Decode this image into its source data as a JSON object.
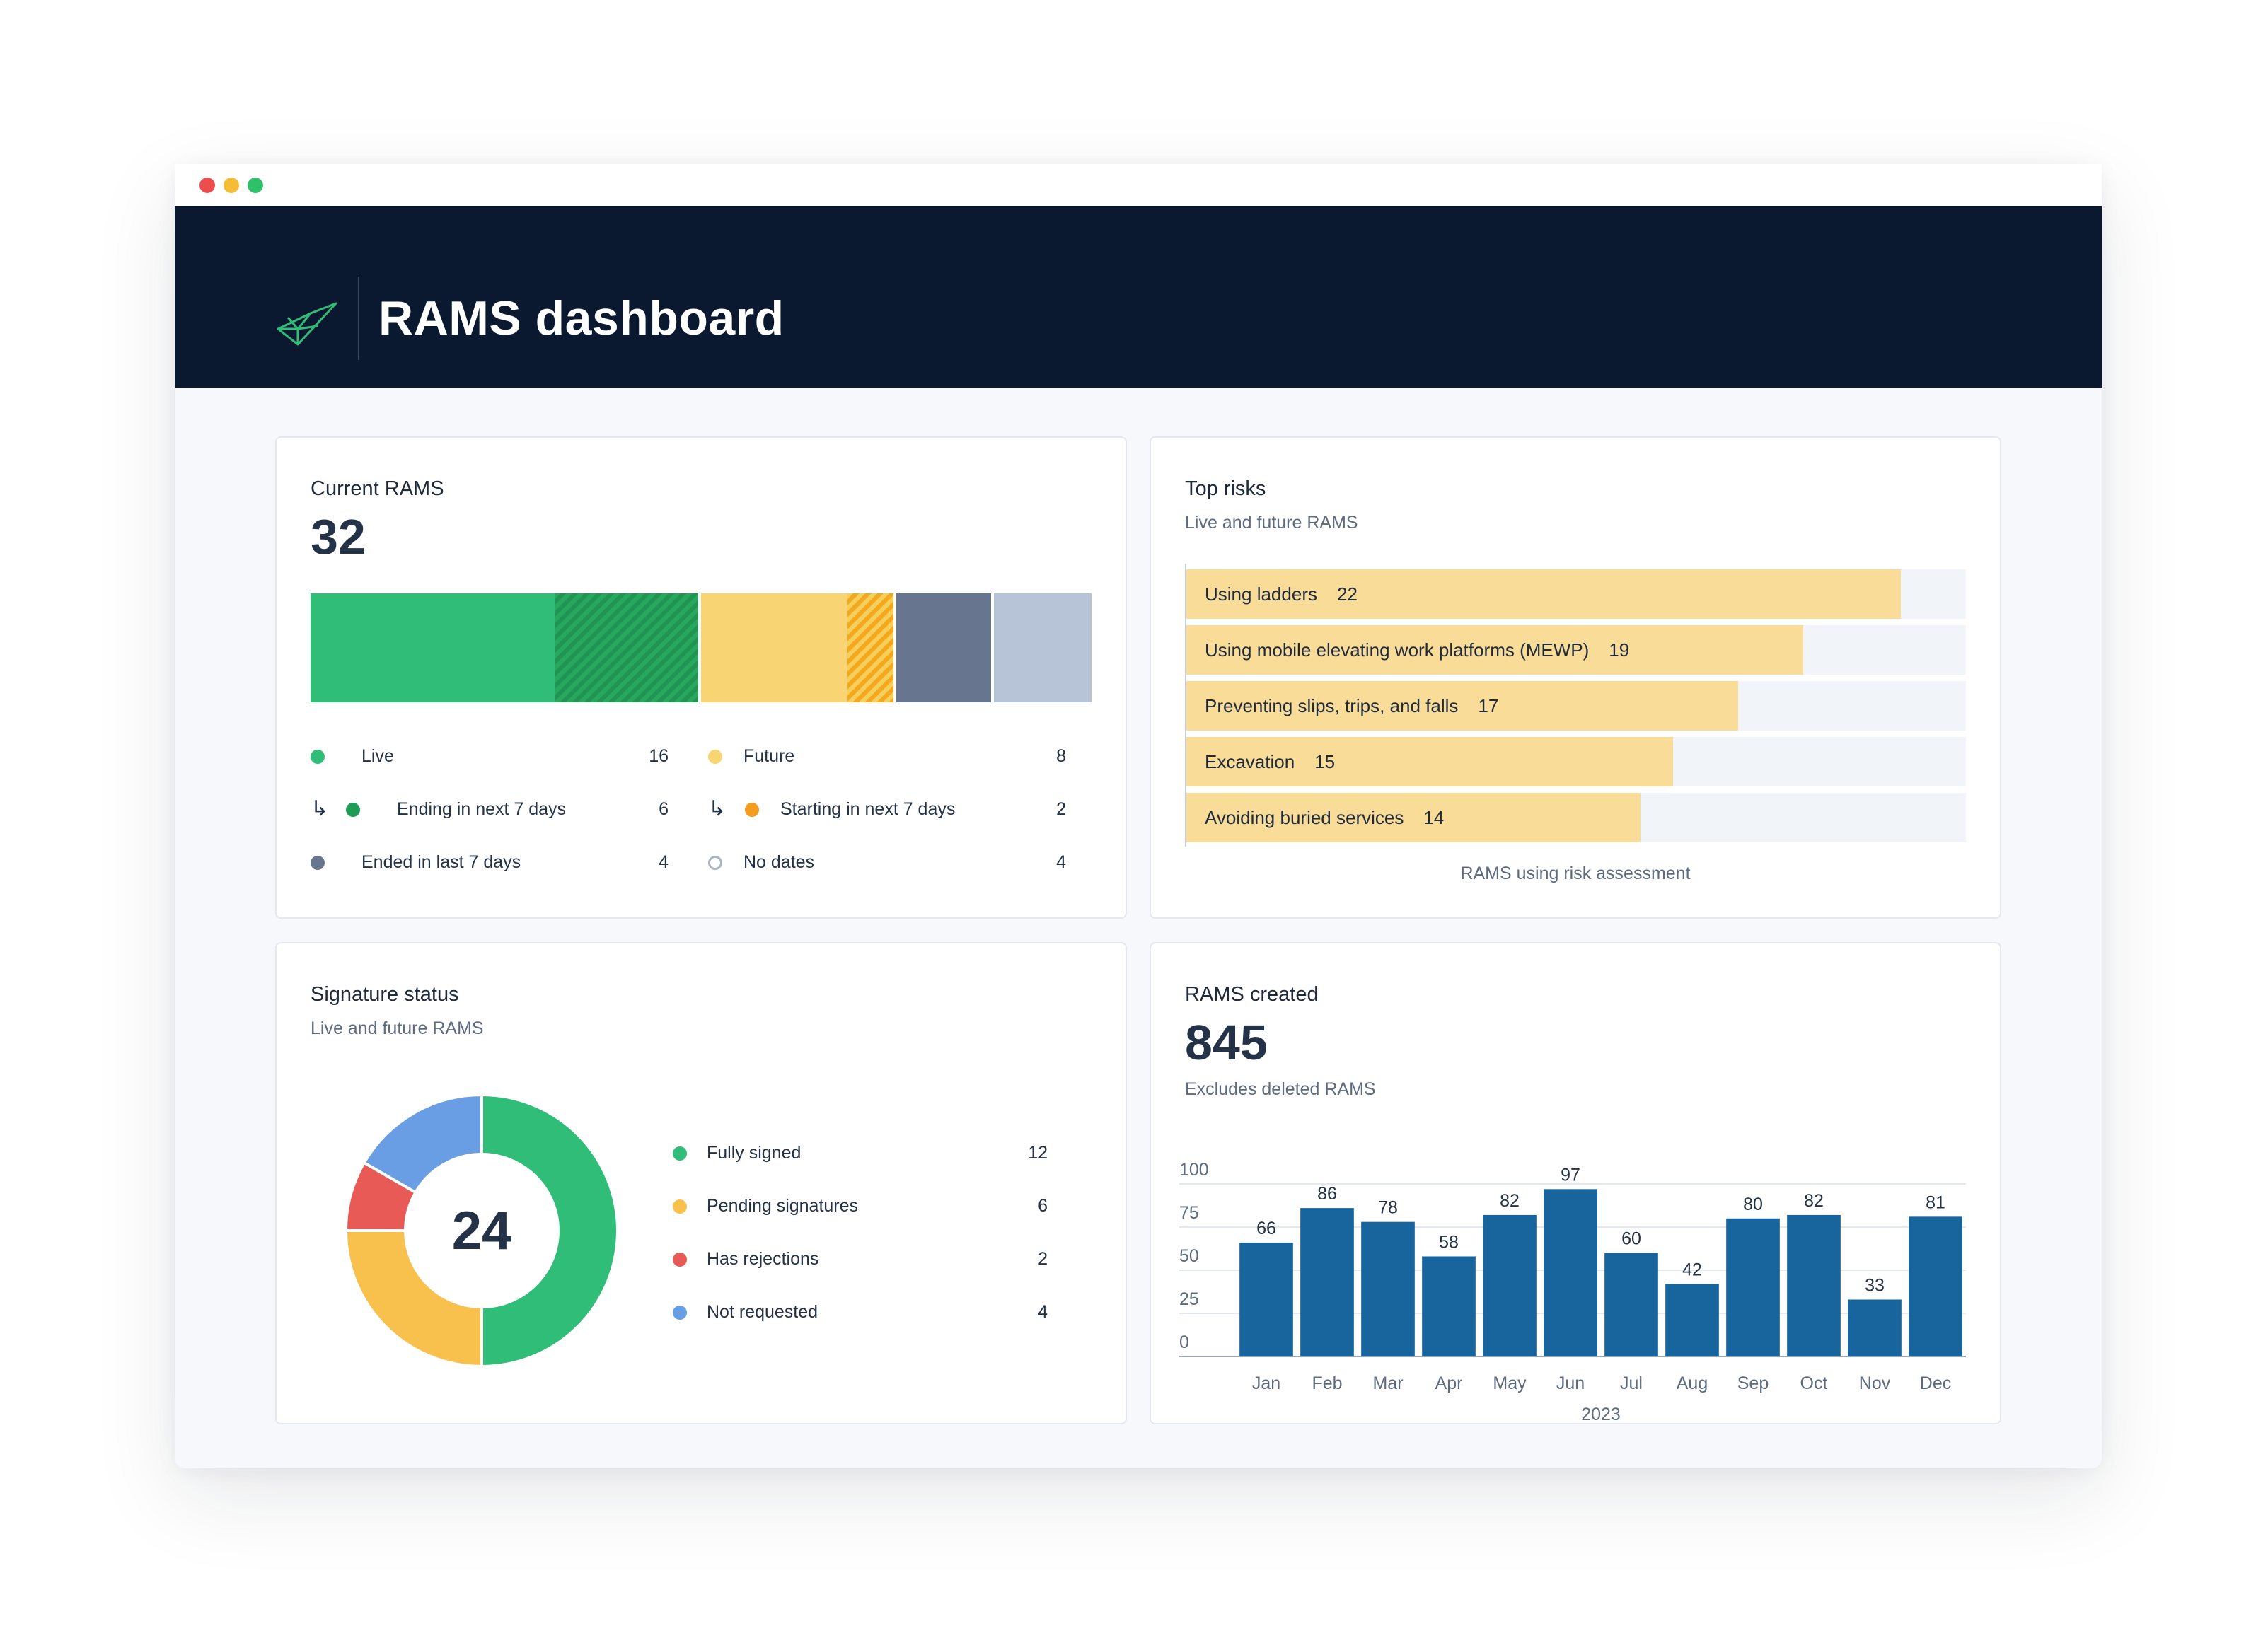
{
  "window": {
    "controls": [
      "close",
      "minimize",
      "maximize"
    ]
  },
  "header": {
    "title": "RAMS dashboard",
    "logo": "bird-logo-icon"
  },
  "current_rams": {
    "title": "Current RAMS",
    "total": "32",
    "segments": [
      {
        "name": "Live",
        "value": 10,
        "color": "#2fbd77"
      },
      {
        "name": "Ending in next 7 days",
        "value": 6,
        "color": "#27a85e",
        "pattern": "hatched"
      },
      {
        "name": "Future",
        "value": 6,
        "color": "#f8d472"
      },
      {
        "name": "Starting in next 7 days",
        "value": 2,
        "color": "#f5b13a",
        "pattern": "hatched"
      },
      {
        "name": "Ended in last 7 days",
        "value": 4,
        "color": "#67768e"
      },
      {
        "name": "No dates",
        "value": 4,
        "color": "#b7c4d8"
      }
    ],
    "legend": {
      "live": {
        "label": "Live",
        "value": "16",
        "color": "#2fbd77"
      },
      "ending": {
        "label": "Ending in next 7 days",
        "value": "6",
        "color": "#1f9a57"
      },
      "ended": {
        "label": "Ended in last 7 days",
        "value": "4",
        "color": "#67768e"
      },
      "future": {
        "label": "Future",
        "value": "8",
        "color": "#f8d472"
      },
      "starting": {
        "label": "Starting in next 7 days",
        "value": "2",
        "color": "#f39c1e"
      },
      "nodates": {
        "label": "No dates",
        "value": "4",
        "color": "#a8b4c6"
      },
      "sub_arrow": "↳"
    }
  },
  "top_risks": {
    "title": "Top risks",
    "subtitle": "Live and future RAMS",
    "footer": "RAMS using risk assessment",
    "max": 24,
    "items": [
      {
        "label": "Using ladders",
        "value": "22"
      },
      {
        "label": "Using mobile elevating work platforms (MEWP)",
        "value": "19"
      },
      {
        "label": "Preventing slips, trips, and falls",
        "value": "17"
      },
      {
        "label": "Excavation",
        "value": "15"
      },
      {
        "label": "Avoiding buried services",
        "value": "14"
      }
    ]
  },
  "signature_status": {
    "title": "Signature status",
    "subtitle": "Live and future RAMS",
    "total": "24",
    "items": [
      {
        "label": "Fully signed",
        "value": "12",
        "color": "#2fbd77"
      },
      {
        "label": "Pending signatures",
        "value": "6",
        "color": "#f8c14e"
      },
      {
        "label": "Has rejections",
        "value": "2",
        "color": "#e85a55"
      },
      {
        "label": "Not requested",
        "value": "4",
        "color": "#6a9ee4"
      }
    ]
  },
  "rams_created": {
    "title": "RAMS created",
    "total": "845",
    "subtitle": "Excludes deleted RAMS",
    "chart_data": {
      "type": "bar",
      "categories": [
        "Jan",
        "Feb",
        "Mar",
        "Apr",
        "May",
        "Jun",
        "Jul",
        "Aug",
        "Sep",
        "Oct",
        "Nov",
        "Dec"
      ],
      "values": [
        66,
        86,
        78,
        58,
        82,
        97,
        60,
        42,
        80,
        82,
        33,
        81
      ],
      "xlabel": "2023",
      "ylabel": "",
      "ylim": [
        0,
        100
      ],
      "yticks": [
        "0",
        "25",
        "50",
        "75",
        "100"
      ],
      "grid": true,
      "color": "#17659c"
    }
  }
}
